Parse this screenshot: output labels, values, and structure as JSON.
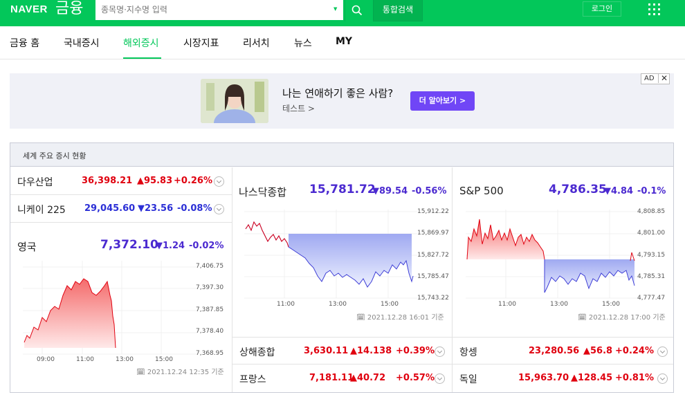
{
  "header": {
    "logo_naver": "NAVER",
    "logo_finance": "금융",
    "search_placeholder": "종목명·지수명 입력",
    "search_button": "통합검색",
    "login": "로그인"
  },
  "nav": {
    "items": [
      "금융 홈",
      "국내증시",
      "해외증시",
      "시장지표",
      "리서치",
      "뉴스",
      "MY"
    ],
    "active": "해외증시"
  },
  "ad": {
    "title": "나는 연애하기 좋은 사람?",
    "subtitle": "테스트 >",
    "cta": "더 알아보기 >",
    "badge": "AD"
  },
  "section": {
    "title": "세계 주요 증시 현황"
  },
  "indices": {
    "dow": {
      "name": "다우산업",
      "value": "36,398.21",
      "change": "▲95.83",
      "pct": "+0.26%"
    },
    "nikkei": {
      "name": "니케이 225",
      "value": "29,045.60",
      "change": "▼23.56",
      "pct": "-0.08%"
    },
    "uk": {
      "name": "영국",
      "value": "7,372.10",
      "change": "▼1.24",
      "pct": "-0.02%",
      "time": "2021.12.24 12:35 기준"
    },
    "nasdaq": {
      "name": "나스닥종합",
      "value": "15,781.72",
      "change": "▼89.54",
      "pct": "-0.56%",
      "time": "2021.12.28 16:01 기준"
    },
    "sp500": {
      "name": "S&P 500",
      "value": "4,786.35",
      "change": "▼4.84",
      "pct": "-0.1%",
      "time": "2021.12.28 17:00 기준"
    },
    "shanghai": {
      "name": "상해종합",
      "value": "3,630.11",
      "change": "▲14.138",
      "pct": "+0.39%"
    },
    "hangseng": {
      "name": "항셍",
      "value": "23,280.56",
      "change": "▲56.8",
      "pct": "+0.24%"
    },
    "france": {
      "name": "프랑스",
      "value": "7,181.11",
      "change": "▲40.72",
      "pct": "+0.57%"
    },
    "germany": {
      "name": "독일",
      "value": "15,963.70",
      "change": "▲128.45",
      "pct": "+0.81%"
    }
  },
  "charts": {
    "uk": {
      "yticks": [
        "7,406.75",
        "7,397.30",
        "7,387.85",
        "7,378.40",
        "7,368.95"
      ],
      "xticks": [
        "09:00",
        "11:00",
        "13:00",
        "15:00"
      ]
    },
    "nasdaq": {
      "yticks": [
        "15,912.22",
        "15,869.97",
        "15,827.72",
        "15,785.47",
        "15,743.22"
      ],
      "xticks": [
        "11:00",
        "13:00",
        "15:00"
      ]
    },
    "sp500": {
      "yticks": [
        "4,808.85",
        "4,801.00",
        "4,793.15",
        "4,785.31",
        "4,777.47"
      ],
      "xticks": [
        "11:00",
        "13:00",
        "15:00"
      ]
    }
  },
  "colors": {
    "brand": "#03c75a",
    "up": "#e0000f",
    "down": "#2b2fd6",
    "ad_cta": "#7046f6"
  }
}
